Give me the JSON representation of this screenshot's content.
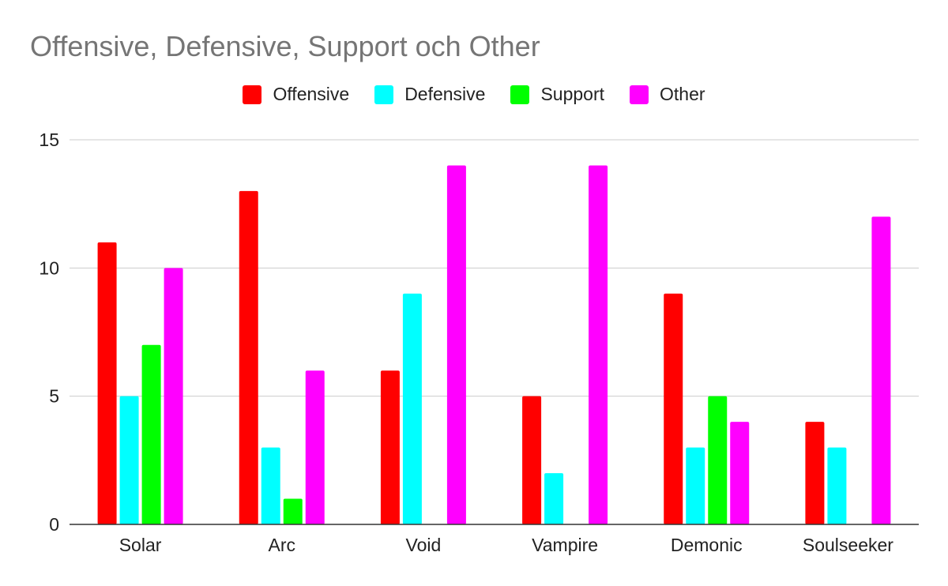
{
  "chart_data": {
    "type": "bar",
    "title": "Offensive, Defensive, Support och Other",
    "xlabel": "",
    "ylabel": "",
    "categories": [
      "Solar",
      "Arc",
      "Void",
      "Vampire",
      "Demonic",
      "Soulseeker"
    ],
    "series": [
      {
        "name": "Offensive",
        "color": "#ff0000",
        "values": [
          11,
          13,
          6,
          5,
          9,
          4
        ]
      },
      {
        "name": "Defensive",
        "color": "#00ffff",
        "values": [
          5,
          3,
          9,
          2,
          3,
          3
        ]
      },
      {
        "name": "Support",
        "color": "#00ff00",
        "values": [
          7,
          1,
          0,
          0,
          5,
          0
        ]
      },
      {
        "name": "Other",
        "color": "#ff00ff",
        "values": [
          10,
          6,
          14,
          14,
          4,
          12
        ]
      }
    ],
    "ylim": [
      0,
      15
    ],
    "yticks": [
      "0",
      "5",
      "10",
      "15"
    ],
    "grid": true,
    "legend_position": "top"
  }
}
